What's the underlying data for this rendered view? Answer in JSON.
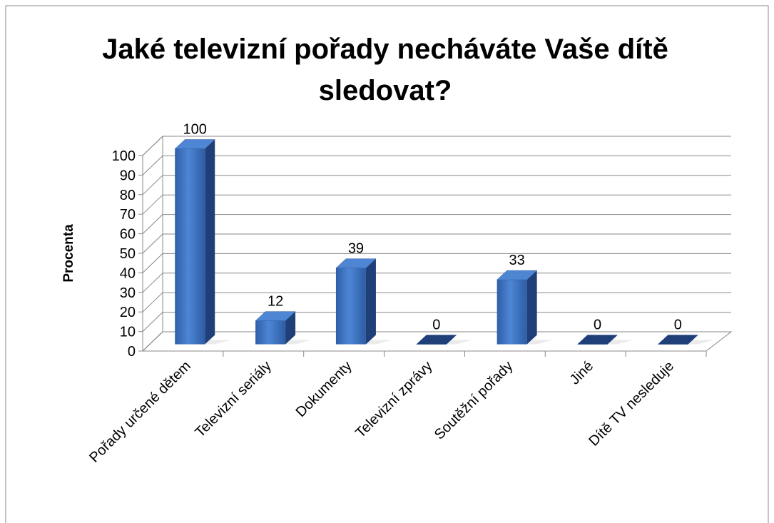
{
  "chart_data": {
    "type": "bar3d",
    "title": "Jaké televizní pořady necháváte Vaše dítě sledovat?",
    "y_label": "Procenta",
    "categories": [
      "Pořady určené dětem",
      "Televizní seriály",
      "Dokumenty",
      "Televizní zprávy",
      "Soutěžní pořady",
      "Jiné",
      "Dítě TV nesleduje"
    ],
    "values": [
      100,
      12,
      39,
      0,
      33,
      0,
      0
    ],
    "color": "#3b6fc0",
    "ylim": [
      0,
      100
    ],
    "yticks": [
      0,
      10,
      20,
      30,
      40,
      50,
      60,
      70,
      80,
      90,
      100
    ],
    "grid": true
  }
}
